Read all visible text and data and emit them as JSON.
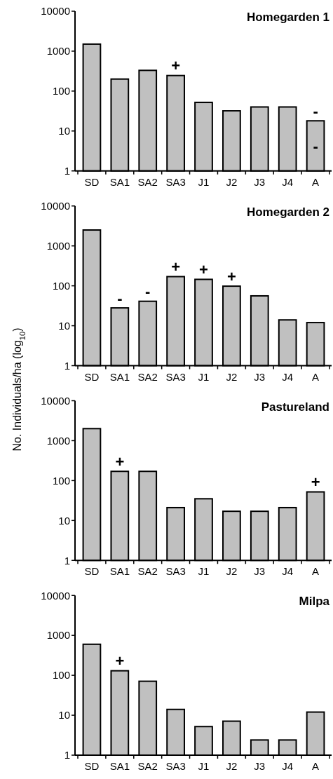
{
  "chart_data": [
    {
      "type": "bar",
      "title": "Homegarden 1",
      "categories": [
        "SD",
        "SA1",
        "SA2",
        "SA3",
        "J1",
        "J2",
        "J3",
        "J4",
        "A"
      ],
      "values": [
        1500,
        200,
        330,
        245,
        52,
        32,
        40,
        40,
        18
      ],
      "color": "#c0c0c0",
      "log": true,
      "ylim": [
        1,
        10000
      ],
      "yticks": [
        1,
        10,
        100,
        1000,
        10000
      ],
      "grid": false,
      "annotations": [
        {
          "text": "+",
          "x": "SA3",
          "y": 245
        },
        {
          "text": "-",
          "x": "A",
          "y": 18
        },
        {
          "text": "-",
          "x": "A",
          "y": 18
        }
      ]
    },
    {
      "type": "bar",
      "title": "Homegarden 2",
      "ylabel": "No. Individuals/ha (log$_{10}$)",
      "categories": [
        "SD",
        "SA1",
        "SA2",
        "SA3",
        "J1",
        "J2",
        "J3",
        "J4",
        "A"
      ],
      "values": [
        2500,
        28,
        41,
        170,
        145,
        98,
        56,
        14,
        12
      ],
      "color": "#c0c0c0",
      "log": true,
      "ylim": [
        1,
        10000
      ],
      "yticks": [
        1,
        10,
        100,
        1000,
        10000
      ],
      "grid": false,
      "annotations": [
        {
          "text": "-",
          "x": "SA1",
          "y": 28
        },
        {
          "text": "-",
          "x": "SA2",
          "y": 41
        },
        {
          "text": "+",
          "x": "SA3",
          "y": 170
        },
        {
          "text": "+",
          "x": "J1",
          "y": 145
        },
        {
          "text": "+",
          "x": "J2",
          "y": 98
        }
      ]
    },
    {
      "type": "bar",
      "title": "Pastureland",
      "categories": [
        "SD",
        "SA1",
        "SA2",
        "SA3",
        "J1",
        "J2",
        "J3",
        "J4",
        "A"
      ],
      "values": [
        2000,
        170,
        170,
        21,
        35,
        17,
        17,
        21,
        52
      ],
      "color": "#c0c0c0",
      "log": true,
      "ylim": [
        1,
        10000
      ],
      "yticks": [
        1,
        10,
        100,
        1000,
        10000
      ],
      "grid": false,
      "annotations": [
        {
          "text": "+",
          "x": "SA1",
          "y": 170
        },
        {
          "text": "+",
          "x": "A",
          "y": 52
        }
      ]
    },
    {
      "type": "bar",
      "title": "Milpa",
      "categories": [
        "SD",
        "SA1",
        "SA2",
        "SA3",
        "J1",
        "J2",
        "J3",
        "J4",
        "A"
      ],
      "values": [
        600,
        130,
        71,
        14,
        5.2,
        7.1,
        2.4,
        2.4,
        12
      ],
      "color": "#c0c0c0",
      "log": true,
      "ylim": [
        1,
        10000
      ],
      "yticks": [
        1,
        10,
        100,
        1000,
        10000
      ],
      "grid": false,
      "annotations": [
        {
          "text": "+",
          "x": "SA1",
          "y": 130
        }
      ]
    }
  ]
}
